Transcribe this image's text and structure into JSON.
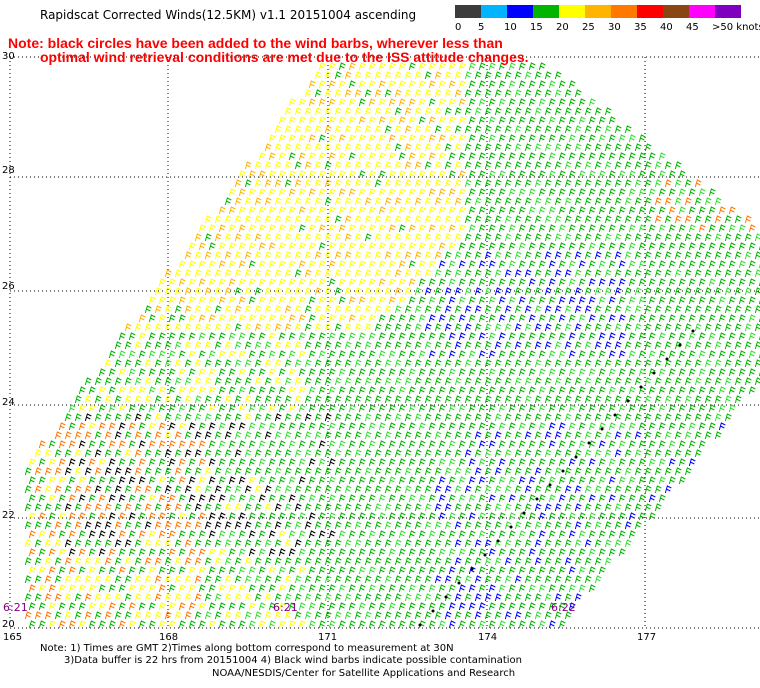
{
  "title": "Rapidscat Corrected Winds(12.5KM) v1.1 20151004 ascending",
  "notice": {
    "line1": "Note: black circles have been added to the wind barbs, wherever less than",
    "line2": "optimal wind retrieval conditions are met due to the ISS attitude changes."
  },
  "legend": {
    "unit": "knots",
    "bins": [
      {
        "label": "0",
        "color": "#3c3c3c"
      },
      {
        "label": "5",
        "color": "#00b4ff"
      },
      {
        "label": "10",
        "color": "#0000ff"
      },
      {
        "label": "15",
        "color": "#00b400"
      },
      {
        "label": "20",
        "color": "#ffff00"
      },
      {
        "label": "25",
        "color": "#ffb400"
      },
      {
        "label": "30",
        "color": "#ff7800"
      },
      {
        "label": "35",
        "color": "#ff0000"
      },
      {
        "label": "40",
        "color": "#8b4513"
      },
      {
        "label": "45",
        "color": "#ff00ff"
      },
      {
        "label": ">50 knots",
        "color": "#8000c0"
      }
    ]
  },
  "latitudes": [
    "30",
    "28",
    "26",
    "24",
    "22",
    "20"
  ],
  "longitudes": [
    "165",
    "168",
    "171",
    "174",
    "177"
  ],
  "time_labels": [
    "6:21",
    "6:21",
    "6:22"
  ],
  "footer": {
    "line1": "Note: 1) Times are GMT 2)Times along bottom correspond to measurement at 30N",
    "line2": "3)Data buffer is 22 hrs from 20151004 4) Black wind barbs indicate possible contamination",
    "line3": "NOAA/NESDIS/Center for Satellite Applications and Research"
  }
}
